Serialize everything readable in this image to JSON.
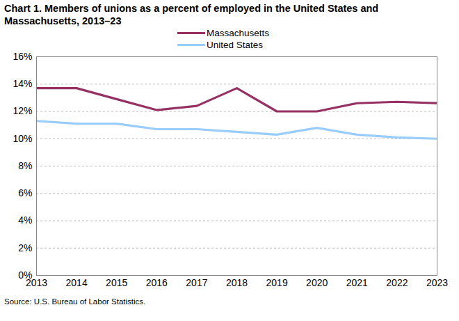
{
  "chart_data": {
    "type": "line",
    "title": "Chart 1. Members of unions as a percent of employed in the United States and Massachusetts, 2013–23",
    "caption": "Source: U.S. Bureau of Labor Statistics.",
    "x": [
      2013,
      2014,
      2015,
      2016,
      2017,
      2018,
      2019,
      2020,
      2021,
      2022,
      2023
    ],
    "series": [
      {
        "name": "Massachusetts",
        "color": "#953163",
        "values": [
          13.7,
          13.7,
          12.9,
          12.1,
          12.4,
          13.7,
          12.0,
          12.0,
          12.6,
          12.7,
          12.6
        ]
      },
      {
        "name": "United States",
        "color": "#99ccff",
        "values": [
          11.3,
          11.1,
          11.1,
          10.7,
          10.7,
          10.5,
          10.3,
          10.8,
          10.3,
          10.1,
          10.0
        ]
      }
    ],
    "xlim": [
      2013,
      2023
    ],
    "xticks": [
      2013,
      2014,
      2015,
      2016,
      2017,
      2018,
      2019,
      2020,
      2021,
      2022,
      2023
    ],
    "ylim": [
      0,
      16
    ],
    "yticks": [
      {
        "value": 0,
        "label": "0%"
      },
      {
        "value": 2,
        "label": "2%"
      },
      {
        "value": 4,
        "label": "4%"
      },
      {
        "value": 6,
        "label": "6%"
      },
      {
        "value": 8,
        "label": "8%"
      },
      {
        "value": 10,
        "label": "10%"
      },
      {
        "value": 12,
        "label": "12%"
      },
      {
        "value": 14,
        "label": "14%"
      },
      {
        "value": 16,
        "label": "16%"
      }
    ],
    "grid": true,
    "legend": "top"
  }
}
